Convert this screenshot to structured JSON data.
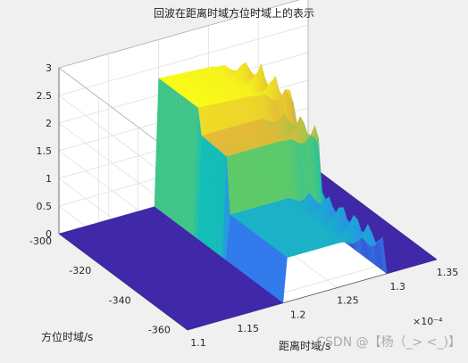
{
  "chart_data": {
    "type": "surface",
    "title": "回波在距离时域方位时域上的表示",
    "xlabel": "距离时域/s",
    "ylabel": "方位时域/s",
    "zlabel": "",
    "x_tick_labels": [
      "1.1",
      "1.15",
      "1.2",
      "1.25",
      "1.3",
      "1.35"
    ],
    "x_exponent": "×10⁻⁴",
    "y_tick_labels": [
      "-300",
      "-320",
      "-340",
      "-360"
    ],
    "z_tick_labels": [
      "0",
      "0.5",
      "1",
      "1.5",
      "2",
      "2.5",
      "3"
    ],
    "xlim": [
      0.00011,
      0.000135
    ],
    "ylim": [
      -365,
      -300
    ],
    "zlim": [
      0,
      3
    ],
    "colormap": "parula",
    "grid": true,
    "surface_description": {
      "echo_range_start": 0.00012,
      "echo_range_end": 0.00013,
      "baseline": 0,
      "plateau_levels": [
        0.8,
        1.8,
        2.3
      ],
      "peak_value": 2.3
    },
    "colors": {
      "low": "#3e26a8",
      "mid": "#13beb7",
      "high": "#f9fb15"
    }
  },
  "watermark": "CSDN @【杨（_> <_)】"
}
